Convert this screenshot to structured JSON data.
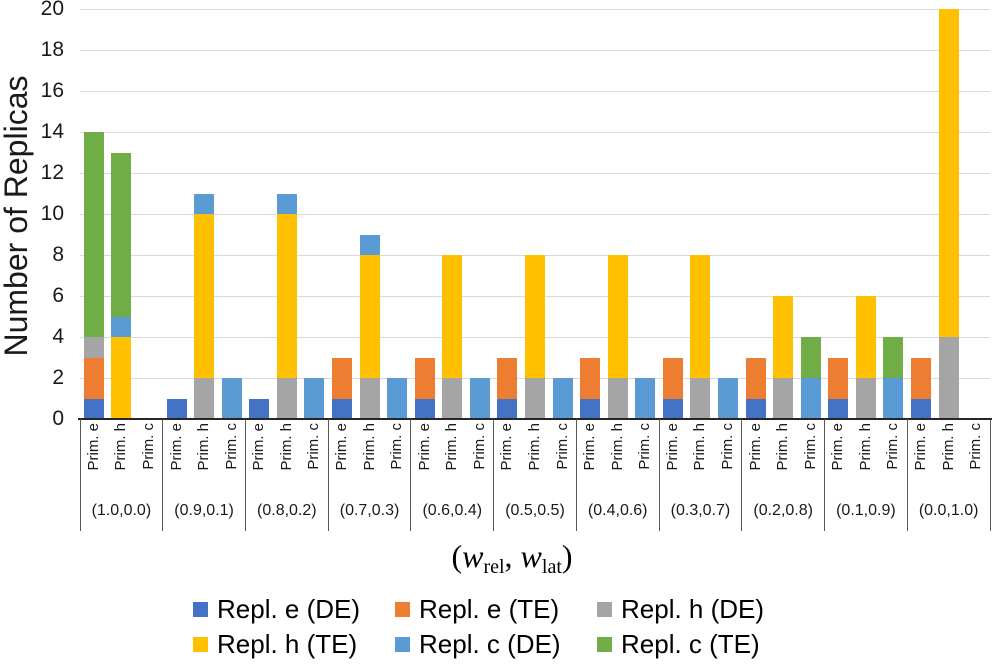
{
  "chart_data": {
    "type": "stacked-bar",
    "ylabel": "Number of Replicas",
    "xlabel": "(w_rel, w_lat)",
    "xlabel_rich": {
      "open": "(",
      "var1": "w",
      "sub1": "rel",
      "sep": ", ",
      "var2": "w",
      "sub2": "lat",
      "close": ")"
    },
    "ylim": [
      0,
      20
    ],
    "ytick_values": [
      0,
      2,
      4,
      6,
      8,
      10,
      12,
      14,
      16,
      18,
      20
    ],
    "grid": "horizontal",
    "legend_position": "bottom",
    "bar_labels": [
      "Prim. e",
      "Prim. h",
      "Prim. c"
    ],
    "series": [
      {
        "name": "Repl. e (DE)",
        "color": "#4472C4"
      },
      {
        "name": "Repl. e (TE)",
        "color": "#ED7D31"
      },
      {
        "name": "Repl. h (DE)",
        "color": "#A5A5A5"
      },
      {
        "name": "Repl. h (TE)",
        "color": "#FFC000"
      },
      {
        "name": "Repl. c (DE)",
        "color": "#5B9BD5"
      },
      {
        "name": "Repl. c (TE)",
        "color": "#70AD47"
      }
    ],
    "groups": [
      {
        "label": "(1.0,0.0)",
        "bars": [
          [
            1,
            2,
            1,
            0,
            0,
            10
          ],
          [
            0,
            0,
            0,
            4,
            1,
            8
          ],
          [
            0,
            0,
            0,
            0,
            0,
            0
          ]
        ]
      },
      {
        "label": "(0.9,0.1)",
        "bars": [
          [
            1,
            0,
            0,
            0,
            0,
            0
          ],
          [
            0,
            0,
            2,
            8,
            1,
            0
          ],
          [
            0,
            0,
            0,
            0,
            2,
            0
          ]
        ]
      },
      {
        "label": "(0.8,0.2)",
        "bars": [
          [
            1,
            0,
            0,
            0,
            0,
            0
          ],
          [
            0,
            0,
            2,
            8,
            1,
            0
          ],
          [
            0,
            0,
            0,
            0,
            2,
            0
          ]
        ]
      },
      {
        "label": "(0.7,0.3)",
        "bars": [
          [
            1,
            2,
            0,
            0,
            0,
            0
          ],
          [
            0,
            0,
            2,
            6,
            1,
            0
          ],
          [
            0,
            0,
            0,
            0,
            2,
            0
          ]
        ]
      },
      {
        "label": "(0.6,0.4)",
        "bars": [
          [
            1,
            2,
            0,
            0,
            0,
            0
          ],
          [
            0,
            0,
            2,
            6,
            0,
            0
          ],
          [
            0,
            0,
            0,
            0,
            2,
            0
          ]
        ]
      },
      {
        "label": "(0.5,0.5)",
        "bars": [
          [
            1,
            2,
            0,
            0,
            0,
            0
          ],
          [
            0,
            0,
            2,
            6,
            0,
            0
          ],
          [
            0,
            0,
            0,
            0,
            2,
            0
          ]
        ]
      },
      {
        "label": "(0.4,0.6)",
        "bars": [
          [
            1,
            2,
            0,
            0,
            0,
            0
          ],
          [
            0,
            0,
            2,
            6,
            0,
            0
          ],
          [
            0,
            0,
            0,
            0,
            2,
            0
          ]
        ]
      },
      {
        "label": "(0.3,0.7)",
        "bars": [
          [
            1,
            2,
            0,
            0,
            0,
            0
          ],
          [
            0,
            0,
            2,
            6,
            0,
            0
          ],
          [
            0,
            0,
            0,
            0,
            2,
            0
          ]
        ]
      },
      {
        "label": "(0.2,0.8)",
        "bars": [
          [
            1,
            2,
            0,
            0,
            0,
            0
          ],
          [
            0,
            0,
            2,
            4,
            0,
            0
          ],
          [
            0,
            0,
            0,
            0,
            2,
            2
          ]
        ]
      },
      {
        "label": "(0.1,0.9)",
        "bars": [
          [
            1,
            2,
            0,
            0,
            0,
            0
          ],
          [
            0,
            0,
            2,
            4,
            0,
            0
          ],
          [
            0,
            0,
            0,
            0,
            2,
            2
          ]
        ]
      },
      {
        "label": "(0.0,1.0)",
        "bars": [
          [
            1,
            2,
            0,
            0,
            0,
            0
          ],
          [
            0,
            0,
            4,
            16,
            0,
            0
          ],
          [
            0,
            0,
            0,
            0,
            0,
            0
          ]
        ]
      }
    ],
    "colors": {
      "gridline": "#d9d9d9",
      "axis_line": "#262626",
      "separator": "#595959"
    }
  }
}
